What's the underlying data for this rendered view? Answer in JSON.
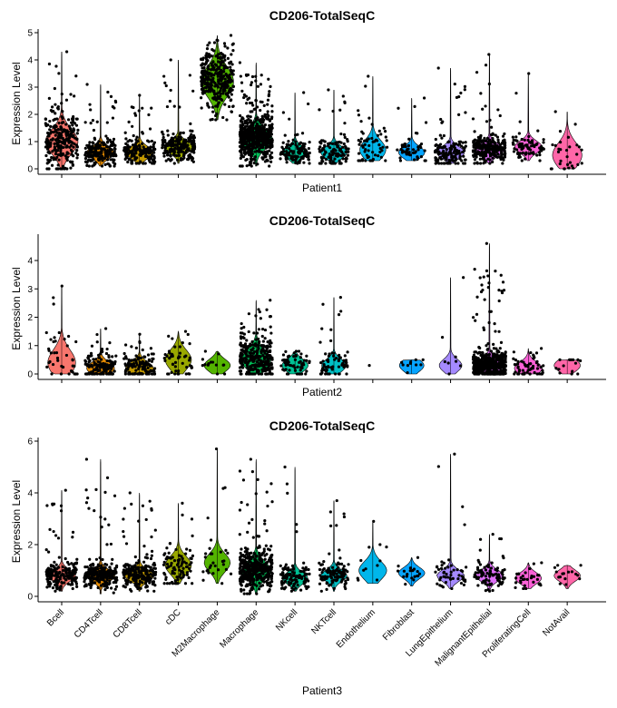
{
  "chart_data": [
    {
      "type": "violin",
      "title": "CD206-TotalSeqC",
      "xlabel": "Patient1",
      "ylabel": "Expression Level",
      "ylim": [
        0,
        5
      ],
      "yticks": [
        0,
        1,
        2,
        3,
        4,
        5
      ],
      "categories": [
        "Bcell",
        "CD4Tcell",
        "CD8Tcell",
        "cDC",
        "M2Macrophage",
        "Macrophage",
        "NKcell",
        "NKTcell",
        "Endothelium",
        "Fibroblast",
        "LungEpithelium",
        "MalignantEpithelial",
        "ProliferatingCell",
        "NotAvail"
      ],
      "show_category_labels": false,
      "series": [
        {
          "category": "Bcell",
          "median": 1.0,
          "max": 4.3,
          "min": 0.0,
          "width": 1.0,
          "shape": "wide-low",
          "n": 260
        },
        {
          "category": "CD4Tcell",
          "median": 0.6,
          "max": 3.1,
          "min": 0.1,
          "width": 0.85,
          "shape": "low",
          "n": 200
        },
        {
          "category": "CD8Tcell",
          "median": 0.6,
          "max": 2.7,
          "min": 0.2,
          "width": 0.85,
          "shape": "low",
          "n": 180
        },
        {
          "category": "cDC",
          "median": 0.8,
          "max": 4.0,
          "min": 0.2,
          "width": 0.9,
          "shape": "low",
          "n": 220
        },
        {
          "category": "M2Macrophage",
          "median": 3.2,
          "max": 4.9,
          "min": 1.8,
          "width": 1.0,
          "shape": "high",
          "n": 320
        },
        {
          "category": "Macrophage",
          "median": 1.1,
          "max": 3.9,
          "min": 0.1,
          "width": 1.0,
          "shape": "mid",
          "n": 600
        },
        {
          "category": "NKcell",
          "median": 0.6,
          "max": 2.8,
          "min": 0.2,
          "width": 0.8,
          "shape": "low",
          "n": 120
        },
        {
          "category": "NKTcell",
          "median": 0.6,
          "max": 2.9,
          "min": 0.2,
          "width": 0.8,
          "shape": "low",
          "n": 120
        },
        {
          "category": "Endothelium",
          "median": 0.7,
          "max": 3.4,
          "min": 0.3,
          "width": 0.8,
          "shape": "mid",
          "n": 60
        },
        {
          "category": "Fibroblast",
          "median": 0.6,
          "max": 2.6,
          "min": 0.3,
          "width": 0.8,
          "shape": "low",
          "n": 50
        },
        {
          "category": "LungEpithelium",
          "median": 0.6,
          "max": 3.7,
          "min": 0.2,
          "width": 0.85,
          "shape": "low",
          "n": 140
        },
        {
          "category": "MalignantEpithelial",
          "median": 0.7,
          "max": 4.2,
          "min": 0.2,
          "width": 0.9,
          "shape": "low",
          "n": 260
        },
        {
          "category": "ProliferatingCell",
          "median": 0.8,
          "max": 3.5,
          "min": 0.3,
          "width": 0.85,
          "shape": "low",
          "n": 80
        },
        {
          "category": "NotAvail",
          "median": 0.5,
          "max": 2.1,
          "min": 0.0,
          "width": 0.9,
          "shape": "wide-low",
          "n": 30
        }
      ]
    },
    {
      "type": "violin",
      "title": "CD206-TotalSeqC",
      "xlabel": "Patient2",
      "ylabel": "Expression Level",
      "ylim": [
        0,
        4.8
      ],
      "yticks": [
        0,
        1,
        2,
        3,
        4
      ],
      "categories": [
        "Bcell",
        "CD4Tcell",
        "CD8Tcell",
        "cDC",
        "M2Macrophage",
        "Macrophage",
        "NKcell",
        "NKTcell",
        "Endothelium",
        "Fibroblast",
        "LungEpithelium",
        "MalignantEpithelial",
        "ProliferatingCell",
        "NotAvail"
      ],
      "show_category_labels": false,
      "series": [
        {
          "category": "Bcell",
          "median": 0.4,
          "max": 3.1,
          "min": 0.0,
          "width": 0.85,
          "shape": "wide-low",
          "n": 40
        },
        {
          "category": "CD4Tcell",
          "median": 0.2,
          "max": 1.6,
          "min": 0.0,
          "width": 0.85,
          "shape": "low",
          "n": 140
        },
        {
          "category": "CD8Tcell",
          "median": 0.2,
          "max": 1.4,
          "min": 0.0,
          "width": 0.85,
          "shape": "low",
          "n": 120
        },
        {
          "category": "cDC",
          "median": 0.5,
          "max": 1.5,
          "min": 0.0,
          "width": 0.8,
          "shape": "mid",
          "n": 50
        },
        {
          "category": "M2Macrophage",
          "median": 0.3,
          "max": 0.8,
          "min": 0.0,
          "width": 0.8,
          "shape": "low",
          "n": 14
        },
        {
          "category": "Macrophage",
          "median": 0.5,
          "max": 2.6,
          "min": 0.0,
          "width": 0.9,
          "shape": "mid",
          "n": 300
        },
        {
          "category": "NKcell",
          "median": 0.3,
          "max": 0.8,
          "min": 0.0,
          "width": 0.8,
          "shape": "low",
          "n": 60
        },
        {
          "category": "NKTcell",
          "median": 0.3,
          "max": 2.7,
          "min": 0.0,
          "width": 0.75,
          "shape": "low",
          "n": 70
        },
        {
          "category": "Endothelium",
          "median": 0.3,
          "max": 0.3,
          "min": 0.3,
          "width": 0.0,
          "shape": "none",
          "n": 1
        },
        {
          "category": "Fibroblast",
          "median": 0.3,
          "max": 0.5,
          "min": 0.0,
          "width": 0.75,
          "shape": "low",
          "n": 10
        },
        {
          "category": "LungEpithelium",
          "median": 0.3,
          "max": 3.4,
          "min": 0.0,
          "width": 0.7,
          "shape": "low",
          "n": 8
        },
        {
          "category": "MalignantEpithelial",
          "median": 0.3,
          "max": 4.6,
          "min": 0.0,
          "width": 0.9,
          "shape": "low",
          "n": 500
        },
        {
          "category": "ProliferatingCell",
          "median": 0.2,
          "max": 0.9,
          "min": 0.0,
          "width": 0.85,
          "shape": "low",
          "n": 60
        },
        {
          "category": "NotAvail",
          "median": 0.3,
          "max": 0.5,
          "min": 0.0,
          "width": 0.8,
          "shape": "low",
          "n": 14
        }
      ]
    },
    {
      "type": "violin",
      "title": "CD206-TotalSeqC",
      "xlabel": "Patient3",
      "ylabel": "Expression Level",
      "ylim": [
        0,
        6
      ],
      "yticks": [
        0,
        2,
        4,
        6
      ],
      "categories": [
        "Bcell",
        "CD4Tcell",
        "CD8Tcell",
        "cDC",
        "M2Macrophage",
        "Macrophage",
        "NKcell",
        "NKTcell",
        "Endothelium",
        "Fibroblast",
        "LungEpithelium",
        "MalignantEpithelial",
        "ProliferatingCell",
        "NotAvail"
      ],
      "show_category_labels": true,
      "series": [
        {
          "category": "Bcell",
          "median": 0.8,
          "max": 4.1,
          "min": 0.2,
          "width": 0.85,
          "shape": "low",
          "n": 200
        },
        {
          "category": "CD4Tcell",
          "median": 0.8,
          "max": 5.3,
          "min": 0.1,
          "width": 0.9,
          "shape": "low",
          "n": 260
        },
        {
          "category": "CD8Tcell",
          "median": 0.8,
          "max": 4.0,
          "min": 0.2,
          "width": 0.9,
          "shape": "low",
          "n": 220
        },
        {
          "category": "cDC",
          "median": 1.2,
          "max": 3.6,
          "min": 0.5,
          "width": 0.8,
          "shape": "mid",
          "n": 90
        },
        {
          "category": "M2Macrophage",
          "median": 1.3,
          "max": 5.7,
          "min": 0.5,
          "width": 0.8,
          "shape": "mid",
          "n": 30
        },
        {
          "category": "Macrophage",
          "median": 1.0,
          "max": 5.3,
          "min": 0.1,
          "width": 0.9,
          "shape": "mid",
          "n": 400
        },
        {
          "category": "NKcell",
          "median": 0.7,
          "max": 5.0,
          "min": 0.2,
          "width": 0.8,
          "shape": "low",
          "n": 110
        },
        {
          "category": "NKTcell",
          "median": 0.8,
          "max": 3.7,
          "min": 0.2,
          "width": 0.8,
          "shape": "low",
          "n": 110
        },
        {
          "category": "Endothelium",
          "median": 1.0,
          "max": 2.9,
          "min": 0.5,
          "width": 0.85,
          "shape": "mid",
          "n": 12
        },
        {
          "category": "Fibroblast",
          "median": 0.9,
          "max": 1.5,
          "min": 0.4,
          "width": 0.8,
          "shape": "low",
          "n": 20
        },
        {
          "category": "LungEpithelium",
          "median": 0.8,
          "max": 5.5,
          "min": 0.3,
          "width": 0.85,
          "shape": "low",
          "n": 50
        },
        {
          "category": "MalignantEpithelial",
          "median": 0.8,
          "max": 2.4,
          "min": 0.2,
          "width": 0.85,
          "shape": "low",
          "n": 90
        },
        {
          "category": "ProliferatingCell",
          "median": 0.7,
          "max": 1.3,
          "min": 0.3,
          "width": 0.8,
          "shape": "low",
          "n": 30
        },
        {
          "category": "NotAvail",
          "median": 0.8,
          "max": 1.2,
          "min": 0.3,
          "width": 0.8,
          "shape": "low",
          "n": 16
        }
      ]
    }
  ],
  "colors": [
    "#F8766D",
    "#E38900",
    "#C49A00",
    "#99A800",
    "#53B400",
    "#00BC56",
    "#00C094",
    "#00BFC4",
    "#00B6EB",
    "#06A4FF",
    "#A58AFF",
    "#DF70F8",
    "#FB61D7",
    "#FF66A8"
  ]
}
